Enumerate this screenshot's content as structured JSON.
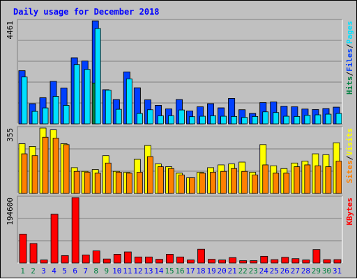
{
  "colors": {
    "background": "#c0c0c0",
    "plot_bg": "#c0c0c0",
    "grid": "#808080",
    "title": "#0000ff",
    "hits": "#008040",
    "files": "#0040ff",
    "pages": "#00e0ff",
    "visits": "#ffff00",
    "sites": "#ff8000",
    "kbytes": "#ff0000",
    "day_weekend": "#008040",
    "day_weekday": "#0000ff"
  },
  "chart_data": {
    "type": "bar",
    "title": "Daily usage for December 2018",
    "categories": [
      "1",
      "2",
      "3",
      "4",
      "5",
      "6",
      "7",
      "8",
      "9",
      "10",
      "11",
      "12",
      "13",
      "14",
      "15",
      "16",
      "17",
      "18",
      "19",
      "20",
      "21",
      "22",
      "23",
      "24",
      "25",
      "26",
      "27",
      "28",
      "29",
      "30",
      "31"
    ],
    "weekend_days": [
      "1",
      "2",
      "8",
      "9",
      "15",
      "16",
      "22",
      "23",
      "29",
      "30"
    ],
    "panels": [
      {
        "name": "top",
        "max_label": "4461",
        "ylim": [
          0,
          4461
        ],
        "legend": [
          "Hits",
          "/",
          "Files",
          "/",
          "Pages"
        ],
        "series": [
          {
            "name": "Hits",
            "values": [
              2300,
              870,
              1130,
              1840,
              1550,
              2860,
              2720,
              1770,
              1480,
              1050,
              2250,
              1560,
              1040,
              800,
              650,
              1050,
              560,
              740,
              870,
              690,
              1100,
              610,
              450,
              920,
              950,
              760,
              740,
              640,
              620,
              660,
              720
            ]
          },
          {
            "name": "Files",
            "values": [
              2300,
              870,
              1130,
              1840,
              1550,
              2860,
              2720,
              4461,
              1480,
              1050,
              2250,
              1560,
              1040,
              800,
              650,
              1050,
              560,
              740,
              870,
              690,
              1100,
              610,
              450,
              920,
              950,
              760,
              740,
              640,
              620,
              660,
              720
            ]
          },
          {
            "name": "Pages",
            "values": [
              2030,
              540,
              690,
              1190,
              800,
              2570,
              2360,
              4130,
              1460,
              630,
              1950,
              450,
              610,
              350,
              350,
              600,
              310,
              330,
              350,
              330,
              320,
              280,
              320,
              520,
              490,
              330,
              320,
              370,
              390,
              420,
              450
            ]
          }
        ]
      },
      {
        "name": "middle",
        "max_label": "355",
        "ylim": [
          0,
          355
        ],
        "legend": [
          "Sites",
          "/",
          "Visits"
        ],
        "series": [
          {
            "name": "Visits",
            "values": [
              270,
              255,
              355,
              345,
              270,
              140,
              120,
              130,
              205,
              120,
              115,
              185,
              260,
              160,
              145,
              110,
              85,
              115,
              140,
              155,
              160,
              170,
              115,
              265,
              150,
              135,
              165,
              175,
              215,
              210,
              275
            ]
          },
          {
            "name": "Sites",
            "values": [
              215,
              205,
              305,
              300,
              265,
              120,
              115,
              110,
              165,
              115,
              110,
              115,
              200,
              145,
              135,
              100,
              85,
              110,
              115,
              120,
              135,
              120,
              100,
              155,
              110,
              110,
              145,
              155,
              150,
              145,
              175
            ]
          }
        ]
      },
      {
        "name": "bottom",
        "max_label": "194600",
        "ylim": [
          0,
          194600
        ],
        "legend": [
          "KBytes"
        ],
        "series": [
          {
            "name": "KBytes",
            "values": [
              86000,
              58000,
              9000,
              145000,
              22000,
              194600,
              24000,
              36000,
              12000,
              26000,
              33000,
              18000,
              18000,
              11000,
              26000,
              18000,
              9000,
              41000,
              11000,
              9000,
              16000,
              7000,
              7000,
              20000,
              10000,
              17000,
              13000,
              9000,
              40000,
              10000,
              10000
            ]
          }
        ]
      }
    ]
  }
}
